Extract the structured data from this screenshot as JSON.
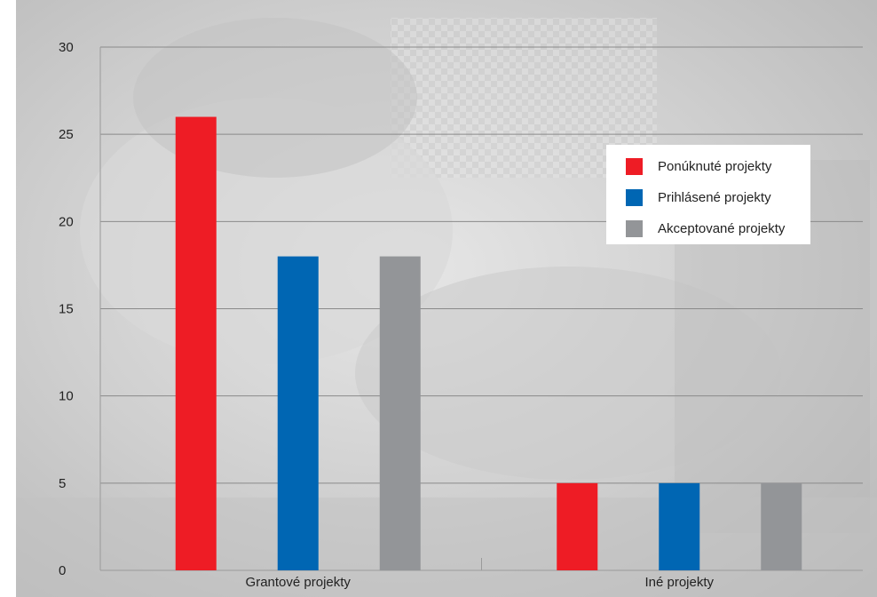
{
  "chart_data": {
    "type": "bar",
    "categories": [
      "Grantové projekty",
      "Iné projekty"
    ],
    "series": [
      {
        "name": "Ponúknuté projekty",
        "values": [
          26,
          5
        ],
        "color": "#ee1c25"
      },
      {
        "name": "Prihlásené projekty",
        "values": [
          18,
          5
        ],
        "color": "#0066b3"
      },
      {
        "name": "Akceptované projekty",
        "values": [
          18,
          5
        ],
        "color": "#939598"
      }
    ],
    "title": "",
    "xlabel": "",
    "ylabel": "",
    "ylim": [
      0,
      30
    ],
    "yticks": [
      0,
      5,
      10,
      15,
      20,
      25,
      30
    ],
    "grid": true,
    "legend_position": "top-right",
    "background": "grayscale photo"
  }
}
